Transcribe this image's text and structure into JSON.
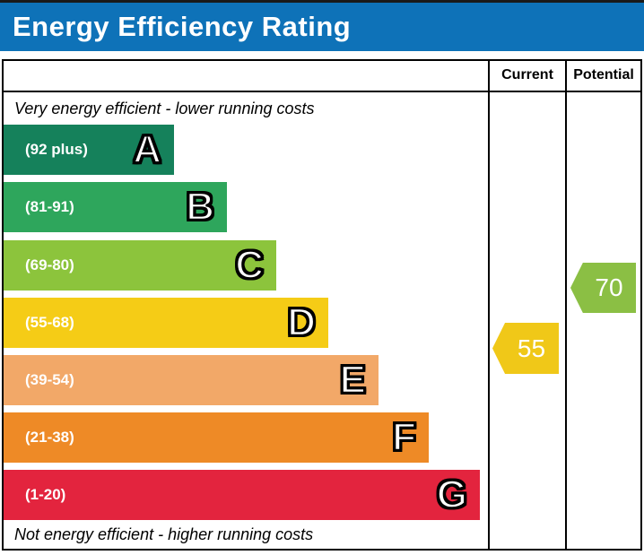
{
  "title": "Energy Efficiency Rating",
  "colors": {
    "title_bar_bg": "#0E72B8",
    "border": "#000000",
    "title_text": "#ffffff"
  },
  "columns": {
    "current_label": "Current",
    "potential_label": "Potential"
  },
  "top_note": "Very energy efficient - lower running costs",
  "bottom_note": "Not energy efficient - higher running costs",
  "chart_data": {
    "type": "bar",
    "subtype": "epc-energy-efficiency-rating",
    "title": "Energy Efficiency Rating",
    "bands": [
      {
        "letter": "A",
        "range_label": "(92 plus)",
        "min": 92,
        "max": 100,
        "color": "#15815B"
      },
      {
        "letter": "B",
        "range_label": "(81-91)",
        "min": 81,
        "max": 91,
        "color": "#2EA65C"
      },
      {
        "letter": "C",
        "range_label": "(69-80)",
        "min": 69,
        "max": 80,
        "color": "#8CC43C"
      },
      {
        "letter": "D",
        "range_label": "(55-68)",
        "min": 55,
        "max": 68,
        "color": "#F5CC16"
      },
      {
        "letter": "E",
        "range_label": "(39-54)",
        "min": 39,
        "max": 54,
        "color": "#F2A868"
      },
      {
        "letter": "F",
        "range_label": "(21-38)",
        "min": 21,
        "max": 38,
        "color": "#EE8A26"
      },
      {
        "letter": "G",
        "range_label": "(1-20)",
        "min": 1,
        "max": 20,
        "color": "#E3243E"
      }
    ],
    "current": {
      "value": 55,
      "band": "D",
      "color": "#F0C818"
    },
    "potential": {
      "value": 70,
      "band": "C",
      "color": "#8BBF44"
    }
  }
}
